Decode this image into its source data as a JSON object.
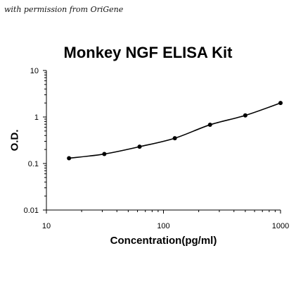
{
  "watermark": "with permission from OriGene",
  "chart_data": {
    "type": "scatter",
    "title": "Monkey NGF ELISA Kit",
    "xlabel": "Concentration(pg/ml)",
    "ylabel": "O.D.",
    "xscale": "log",
    "yscale": "log",
    "xlim": [
      10,
      1000
    ],
    "ylim": [
      0.01,
      10
    ],
    "xticks": [
      10,
      100,
      1000
    ],
    "xtick_labels": [
      "10",
      "100",
      "1000"
    ],
    "yticks": [
      10,
      1,
      0.1,
      0.01
    ],
    "ytick_labels": [
      "10",
      "1",
      "0.1",
      "0.01"
    ],
    "grid": false,
    "legend": "none",
    "series": [
      {
        "x": [
          15.6,
          31.25,
          62.5,
          125,
          250,
          500,
          1000
        ],
        "y": [
          0.13,
          0.16,
          0.23,
          0.35,
          0.68,
          1.08,
          2.0
        ],
        "markers": true,
        "fit_line": true
      }
    ],
    "colors": {
      "line": "#000000",
      "marker": "#000000",
      "axis": "#000000"
    }
  }
}
